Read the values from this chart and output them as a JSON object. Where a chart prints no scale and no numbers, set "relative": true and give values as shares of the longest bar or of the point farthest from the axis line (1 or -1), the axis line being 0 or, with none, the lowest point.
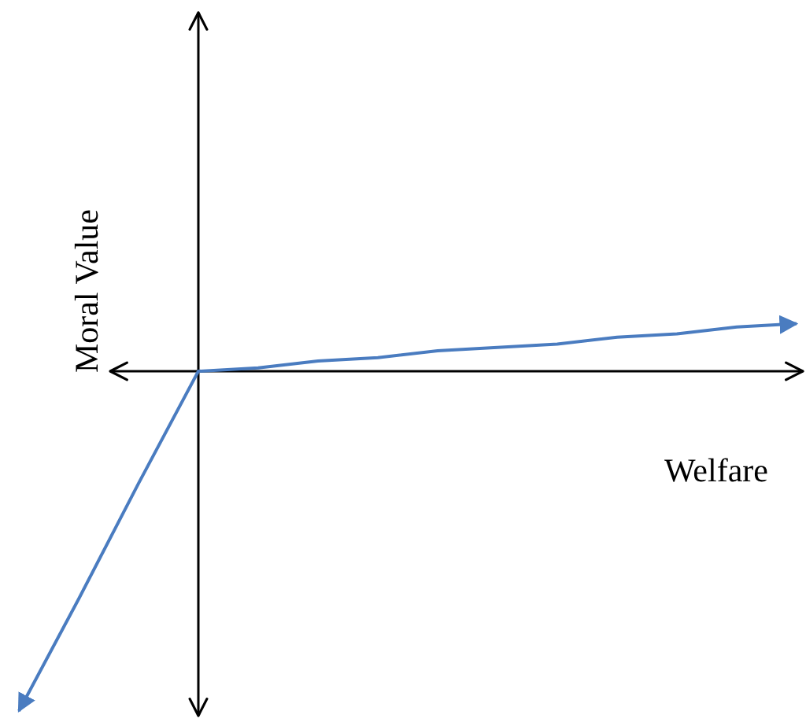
{
  "chart_data": {
    "type": "line",
    "relative": true,
    "xlabel": "Welfare",
    "ylabel": "Moral Value",
    "categories": [
      null,
      null,
      null,
      null,
      null,
      null,
      null,
      null,
      null,
      null,
      null,
      null,
      null,
      null
    ],
    "series": [
      {
        "color": "#4a7cc0",
        "values": [
          -1,
          -0.67,
          -0.33,
          0,
          0.01,
          0.03,
          0.04,
          0.06,
          0.07,
          0.08,
          0.1,
          0.11,
          0.13,
          0.14
        ]
      }
    ]
  }
}
